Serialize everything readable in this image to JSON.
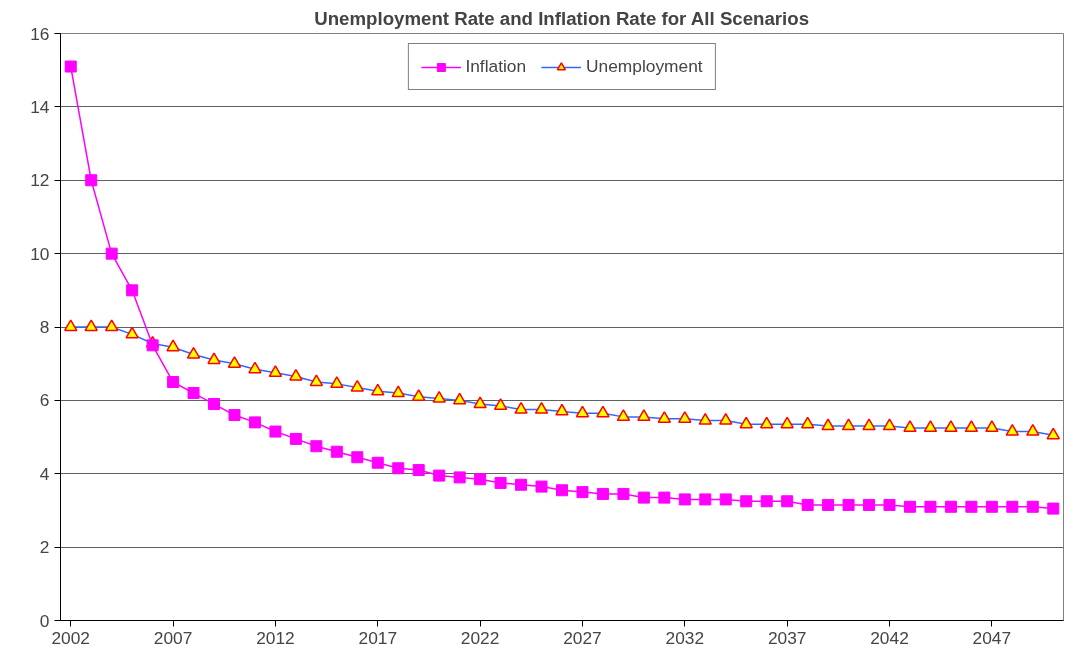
{
  "chart_data": {
    "type": "line",
    "title": "Unemployment Rate and Inflation Rate for All Scenarios",
    "categories": [
      "2002",
      null,
      null,
      null,
      null,
      "2007",
      null,
      null,
      null,
      null,
      "2012",
      null,
      null,
      null,
      null,
      "2017",
      null,
      null,
      null,
      null,
      "2022",
      null,
      null,
      null,
      null,
      "2027",
      null,
      null,
      null,
      null,
      "2032",
      null,
      null,
      null,
      null,
      "2037",
      null,
      null,
      null,
      null,
      "2042",
      null,
      null,
      null,
      null,
      "2047",
      null,
      null,
      null
    ],
    "series": [
      {
        "name": "Inflation",
        "color": "#ff00ff",
        "marker": "square",
        "values": [
          15.1,
          12.0,
          10.0,
          9.0,
          7.5,
          6.5,
          6.2,
          5.9,
          5.6,
          5.4,
          5.15,
          4.95,
          4.75,
          4.6,
          4.45,
          4.3,
          4.15,
          4.1,
          3.95,
          3.9,
          3.85,
          3.75,
          3.7,
          3.65,
          3.55,
          3.5,
          3.45,
          3.45,
          3.35,
          3.35,
          3.3,
          3.3,
          3.3,
          3.25,
          3.25,
          3.25,
          3.15,
          3.15,
          3.15,
          3.15,
          3.15,
          3.1,
          3.1,
          3.1,
          3.1,
          3.1,
          3.1,
          3.1,
          3.05
        ]
      },
      {
        "name": "Unemployment",
        "color": "#3366ff",
        "marker": "triangle",
        "values": [
          8.0,
          8.0,
          8.0,
          7.8,
          7.55,
          7.45,
          7.25,
          7.1,
          7.0,
          6.85,
          6.75,
          6.65,
          6.5,
          6.45,
          6.35,
          6.25,
          6.2,
          6.1,
          6.05,
          6.0,
          5.9,
          5.85,
          5.75,
          5.75,
          5.7,
          5.65,
          5.65,
          5.55,
          5.55,
          5.5,
          5.5,
          5.45,
          5.45,
          5.35,
          5.35,
          5.35,
          5.35,
          5.3,
          5.3,
          5.3,
          5.3,
          5.25,
          5.25,
          5.25,
          5.25,
          5.25,
          5.15,
          5.15,
          5.05
        ]
      }
    ],
    "ylim": [
      0,
      16
    ],
    "yticks": [
      0,
      2,
      4,
      6,
      8,
      10,
      12,
      14,
      16
    ],
    "grid": "y",
    "legend": "top",
    "line_style": "solid"
  }
}
